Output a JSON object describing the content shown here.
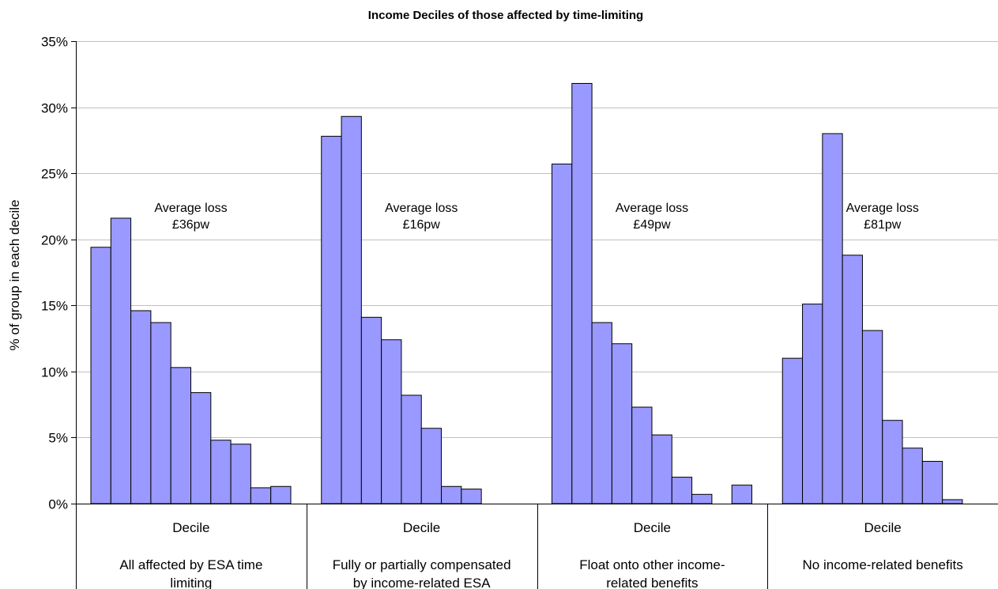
{
  "chart_data": {
    "type": "bar",
    "title": "Income Deciles of those affected by time-limiting",
    "ylabel": "% of group in each decile",
    "ylim": [
      0,
      35
    ],
    "yticks": [
      0,
      5,
      10,
      15,
      20,
      25,
      30,
      35
    ],
    "ytick_labels": [
      "0%",
      "5%",
      "10%",
      "15%",
      "20%",
      "25%",
      "30%",
      "35%"
    ],
    "grid": true,
    "legend": "none",
    "bar_color": "#9999ff",
    "groups": [
      {
        "decile_label": "Decile",
        "category_label": [
          "All affected by ESA time",
          "limiting"
        ],
        "annotation": [
          "Average loss",
          "£36pw"
        ],
        "values": [
          19.4,
          21.6,
          14.6,
          13.7,
          10.3,
          8.4,
          4.8,
          4.5,
          1.2,
          1.3
        ]
      },
      {
        "decile_label": "Decile",
        "category_label": [
          "Fully or partially compensated",
          "by income-related ESA"
        ],
        "annotation": [
          "Average loss",
          "£16pw"
        ],
        "values": [
          27.8,
          29.3,
          14.1,
          12.4,
          8.2,
          5.7,
          1.3,
          1.1,
          0,
          0
        ]
      },
      {
        "decile_label": "Decile",
        "category_label": [
          "Float onto other income-",
          "related benefits"
        ],
        "annotation": [
          "Average loss",
          "£49pw"
        ],
        "values": [
          25.7,
          31.8,
          13.7,
          12.1,
          7.3,
          5.2,
          2.0,
          0.7,
          0,
          1.4
        ]
      },
      {
        "decile_label": "Decile",
        "category_label": [
          "No income-related benefits",
          ""
        ],
        "annotation": [
          "Average loss",
          "£81pw"
        ],
        "values": [
          11.0,
          15.1,
          28.0,
          18.8,
          13.1,
          6.3,
          4.2,
          3.2,
          0.3,
          0
        ]
      }
    ]
  }
}
